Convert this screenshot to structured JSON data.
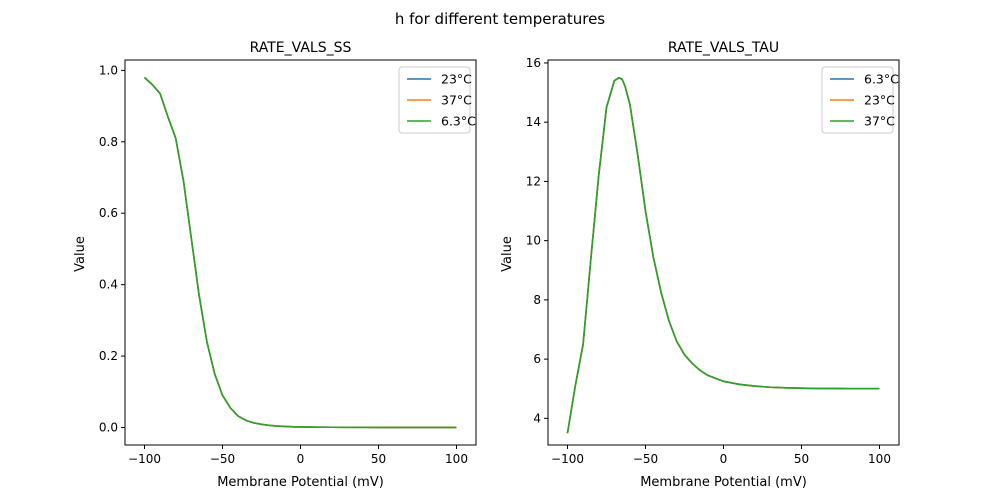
{
  "figure": {
    "suptitle": "h for different temperatures"
  },
  "colors": {
    "c1": "#1f77b4",
    "c2": "#ff7f0e",
    "c3": "#2ca02c"
  },
  "chart_data": [
    {
      "type": "line",
      "title": "RATE_VALS_SS",
      "xlabel": "Membrane Potential (mV)",
      "ylabel": "Value",
      "xlim": [
        -112.5,
        112.5
      ],
      "ylim": [
        -0.049,
        1.029
      ],
      "xticks": [
        -100,
        -50,
        0,
        50,
        100
      ],
      "yticks": [
        0.0,
        0.2,
        0.4,
        0.6,
        0.8,
        1.0
      ],
      "ytick_labels": [
        "0.0",
        "0.2",
        "0.4",
        "0.6",
        "0.8",
        "1.0"
      ],
      "legend": "top-right",
      "x": [
        -100,
        -95,
        -90,
        -85,
        -80,
        -75,
        -70,
        -65,
        -60,
        -55,
        -50,
        -45,
        -40,
        -35,
        -30,
        -25,
        -20,
        -15,
        -10,
        -5,
        0,
        10,
        20,
        30,
        40,
        50,
        60,
        70,
        80,
        90,
        100
      ],
      "series": [
        {
          "name": "23°C",
          "color": "#1f77b4",
          "values": [
            0.98,
            0.96,
            0.935,
            0.87,
            0.81,
            0.69,
            0.53,
            0.37,
            0.24,
            0.15,
            0.09,
            0.055,
            0.032,
            0.02,
            0.013,
            0.009,
            0.006,
            0.004,
            0.003,
            0.002,
            0.0015,
            0.001,
            0.0007,
            0.0005,
            0.0004,
            0.0003,
            0.0002,
            0.0002,
            0.0001,
            0.0001,
            0.0001
          ]
        },
        {
          "name": "37°C",
          "color": "#ff7f0e",
          "values": [
            0.98,
            0.96,
            0.935,
            0.87,
            0.81,
            0.69,
            0.53,
            0.37,
            0.24,
            0.15,
            0.09,
            0.055,
            0.032,
            0.02,
            0.013,
            0.009,
            0.006,
            0.004,
            0.003,
            0.002,
            0.0015,
            0.001,
            0.0007,
            0.0005,
            0.0004,
            0.0003,
            0.0002,
            0.0002,
            0.0001,
            0.0001,
            0.0001
          ]
        },
        {
          "name": "6.3°C",
          "color": "#2ca02c",
          "values": [
            0.98,
            0.96,
            0.935,
            0.87,
            0.81,
            0.69,
            0.53,
            0.37,
            0.24,
            0.15,
            0.09,
            0.055,
            0.032,
            0.02,
            0.013,
            0.009,
            0.006,
            0.004,
            0.003,
            0.002,
            0.0015,
            0.001,
            0.0007,
            0.0005,
            0.0004,
            0.0003,
            0.0002,
            0.0002,
            0.0001,
            0.0001,
            0.0001
          ]
        }
      ]
    },
    {
      "type": "line",
      "title": "RATE_VALS_TAU",
      "xlabel": "Membrane Potential (mV)",
      "ylabel": "Value",
      "xlim": [
        -112.5,
        112.5
      ],
      "ylim": [
        3.1,
        16.1
      ],
      "xticks": [
        -100,
        -50,
        0,
        50,
        100
      ],
      "yticks": [
        4,
        6,
        8,
        10,
        12,
        14,
        16
      ],
      "ytick_labels": [
        "4",
        "6",
        "8",
        "10",
        "12",
        "14",
        "16"
      ],
      "legend": "top-right",
      "x": [
        -100,
        -95,
        -90,
        -85,
        -80,
        -75,
        -70,
        -67,
        -65,
        -63,
        -60,
        -55,
        -50,
        -45,
        -40,
        -35,
        -30,
        -25,
        -20,
        -15,
        -10,
        -5,
        0,
        10,
        20,
        30,
        40,
        50,
        60,
        70,
        80,
        90,
        100
      ],
      "series": [
        {
          "name": "6.3°C",
          "color": "#1f77b4",
          "values": [
            3.5,
            5.1,
            6.5,
            9.4,
            12.2,
            14.5,
            15.4,
            15.5,
            15.45,
            15.2,
            14.6,
            12.9,
            11.0,
            9.45,
            8.25,
            7.3,
            6.6,
            6.15,
            5.85,
            5.62,
            5.45,
            5.35,
            5.25,
            5.15,
            5.09,
            5.05,
            5.03,
            5.02,
            5.01,
            5.01,
            5.0,
            5.0,
            5.0
          ]
        },
        {
          "name": "23°C",
          "color": "#ff7f0e",
          "values": [
            3.5,
            5.1,
            6.5,
            9.4,
            12.2,
            14.5,
            15.4,
            15.5,
            15.45,
            15.2,
            14.6,
            12.9,
            11.0,
            9.45,
            8.25,
            7.3,
            6.6,
            6.15,
            5.85,
            5.62,
            5.45,
            5.35,
            5.25,
            5.15,
            5.09,
            5.05,
            5.03,
            5.02,
            5.01,
            5.01,
            5.0,
            5.0,
            5.0
          ]
        },
        {
          "name": "37°C",
          "color": "#2ca02c",
          "values": [
            3.5,
            5.1,
            6.5,
            9.4,
            12.2,
            14.5,
            15.4,
            15.5,
            15.45,
            15.2,
            14.6,
            12.9,
            11.0,
            9.45,
            8.25,
            7.3,
            6.6,
            6.15,
            5.85,
            5.62,
            5.45,
            5.35,
            5.25,
            5.15,
            5.09,
            5.05,
            5.03,
            5.02,
            5.01,
            5.01,
            5.0,
            5.0,
            5.0
          ]
        }
      ]
    }
  ]
}
